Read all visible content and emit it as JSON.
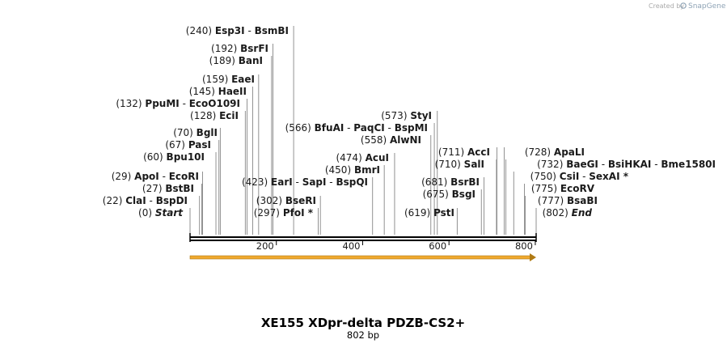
{
  "credit": {
    "prefix": "Created by",
    "brand": "SnapGene"
  },
  "sequence": {
    "title": "XE155 XDpr-delta PDZB-CS2+",
    "length_label": "802 bp",
    "length": 802,
    "ticks": [
      "200",
      "400",
      "600",
      "800"
    ],
    "feature_color": "#f0a92e"
  },
  "sites": [
    {
      "pos": "(0)",
      "names": [
        "Start"
      ],
      "italic": true,
      "bp": 0
    },
    {
      "pos": "(22)",
      "names": [
        "ClaI",
        "BspDI"
      ],
      "bp": 22
    },
    {
      "pos": "(27)",
      "names": [
        "BstBI"
      ],
      "bp": 27
    },
    {
      "pos": "(29)",
      "names": [
        "ApoI",
        "EcoRI"
      ],
      "bp": 29
    },
    {
      "pos": "(60)",
      "names": [
        "Bpu10I"
      ],
      "bp": 60
    },
    {
      "pos": "(67)",
      "names": [
        "PasI"
      ],
      "bp": 67
    },
    {
      "pos": "(70)",
      "names": [
        "BglI"
      ],
      "bp": 70
    },
    {
      "pos": "(128)",
      "names": [
        "EciI"
      ],
      "bp": 128
    },
    {
      "pos": "(132)",
      "names": [
        "PpuMI",
        "EcoO109I"
      ],
      "bp": 132
    },
    {
      "pos": "(145)",
      "names": [
        "HaeII"
      ],
      "bp": 145
    },
    {
      "pos": "(159)",
      "names": [
        "EaeI"
      ],
      "bp": 159
    },
    {
      "pos": "(189)",
      "names": [
        "BanI"
      ],
      "bp": 189
    },
    {
      "pos": "(192)",
      "names": [
        "BsrFI"
      ],
      "bp": 192
    },
    {
      "pos": "(240)",
      "names": [
        "Esp3I",
        "BsmBI"
      ],
      "bp": 240
    },
    {
      "pos": "(297)",
      "names": [
        "PfoI *"
      ],
      "bp": 297
    },
    {
      "pos": "(302)",
      "names": [
        "BseRI"
      ],
      "bp": 302
    },
    {
      "pos": "(423)",
      "names": [
        "EarI",
        "SapI",
        "BspQI"
      ],
      "bp": 423
    },
    {
      "pos": "(450)",
      "names": [
        "BmrI"
      ],
      "bp": 450
    },
    {
      "pos": "(474)",
      "names": [
        "AcuI"
      ],
      "bp": 474
    },
    {
      "pos": "(558)",
      "names": [
        "AlwNI"
      ],
      "bp": 558
    },
    {
      "pos": "(566)",
      "names": [
        "BfuAI",
        "PaqCI",
        "BspMI"
      ],
      "bp": 566
    },
    {
      "pos": "(573)",
      "names": [
        "StyI"
      ],
      "bp": 573
    },
    {
      "pos": "(619)",
      "names": [
        "PstI"
      ],
      "bp": 619
    },
    {
      "pos": "(675)",
      "names": [
        "BsgI"
      ],
      "bp": 675
    },
    {
      "pos": "(681)",
      "names": [
        "BsrBI"
      ],
      "bp": 681
    },
    {
      "pos": "(710)",
      "names": [
        "SalI"
      ],
      "bp": 710
    },
    {
      "pos": "(711)",
      "names": [
        "AccI"
      ],
      "bp": 711
    },
    {
      "pos": "(728)",
      "names": [
        "ApaLI"
      ],
      "bp": 728
    },
    {
      "pos": "(732)",
      "names": [
        "BaeGI",
        "BsiHKAI",
        "Bme1580I"
      ],
      "bp": 732
    },
    {
      "pos": "(750)",
      "names": [
        "CsiI",
        "SexAI *"
      ],
      "bp": 750
    },
    {
      "pos": "(775)",
      "names": [
        "EcoRV"
      ],
      "bp": 775
    },
    {
      "pos": "(777)",
      "names": [
        "BsaBI"
      ],
      "bp": 777
    },
    {
      "pos": "(802)",
      "names": [
        "End"
      ],
      "italic": true,
      "bp": 802
    }
  ]
}
